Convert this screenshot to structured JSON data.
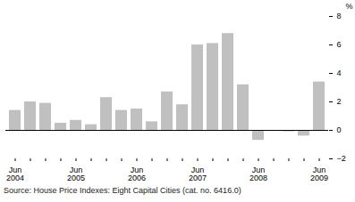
{
  "chart_data": {
    "type": "bar",
    "y_label": "%",
    "caption": "Source: House Price Indexes: Eight Capital Cities (cat. no. 6416.0)",
    "categories": [
      "Jun 2004",
      null,
      null,
      null,
      "Jun 2005",
      null,
      null,
      null,
      "Jun 2006",
      null,
      null,
      null,
      "Jun 2007",
      null,
      null,
      null,
      "Jun 2008",
      null,
      null,
      null,
      "Jun 2009"
    ],
    "values": [
      1.4,
      2.0,
      1.9,
      0.5,
      0.7,
      0.4,
      2.3,
      1.4,
      1.5,
      0.6,
      2.7,
      1.8,
      6.0,
      6.1,
      6.8,
      3.2,
      -0.7,
      0.0,
      -0.1,
      -0.4,
      3.4
    ],
    "color": "#c0c0c0",
    "ylim": [
      -2,
      8
    ],
    "yticks": [
      -2,
      0,
      2,
      4,
      6,
      8
    ],
    "grid": false
  }
}
